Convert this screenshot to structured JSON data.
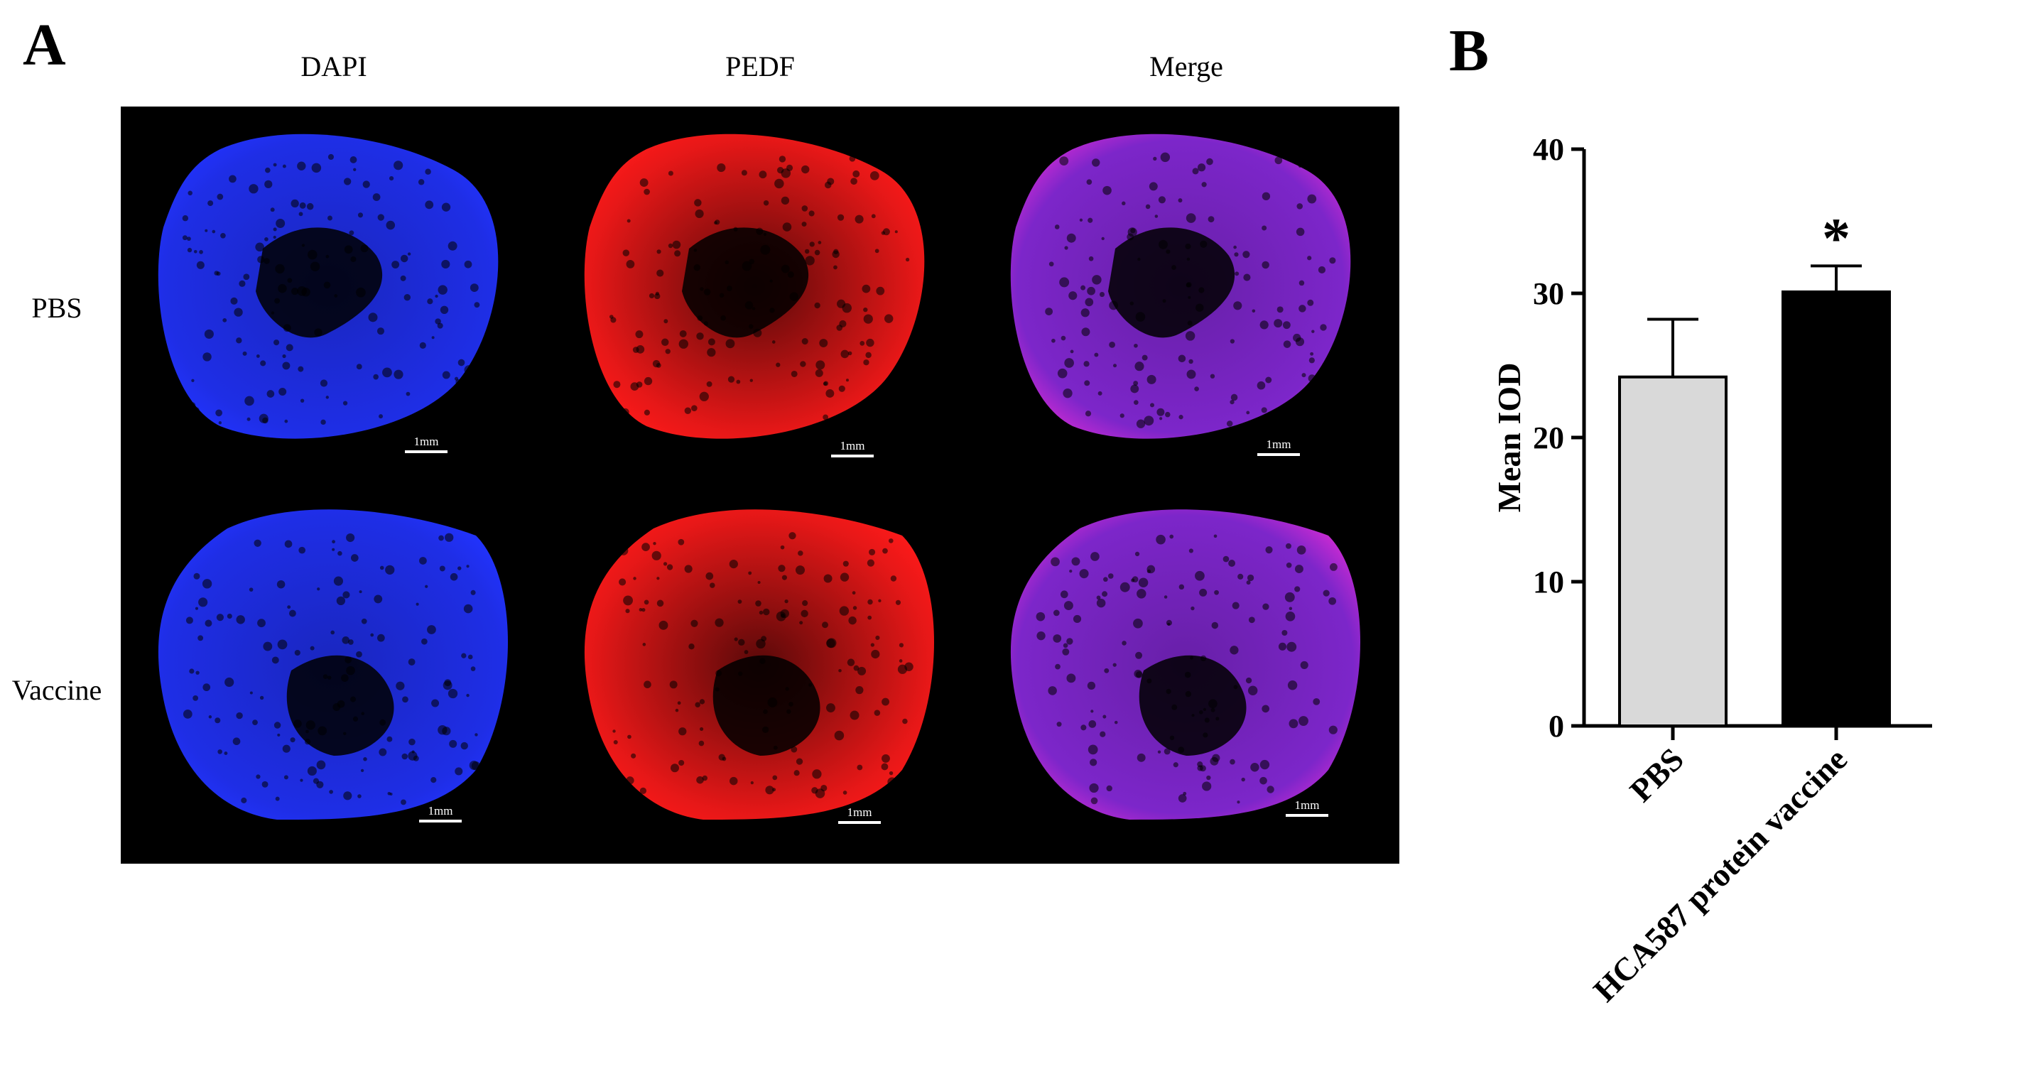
{
  "panel_a": {
    "letter": "A",
    "columns": [
      "DAPI",
      "PEDF",
      "Merge"
    ],
    "rows": [
      "PBS",
      "Vaccine"
    ],
    "scale_label": "1mm",
    "channel_colors": {
      "DAPI": "#2233ff",
      "PEDF": "#ff1a1a",
      "Merge": "#8a2ae0"
    }
  },
  "panel_b": {
    "letter": "B",
    "significance": "*"
  },
  "chart_data": {
    "type": "bar",
    "categories": [
      "PBS",
      "HCA587 protein vaccine"
    ],
    "values": [
      24.2,
      30.1
    ],
    "errors": [
      4.0,
      1.8
    ],
    "bar_colors": [
      "#d9d9d9",
      "#000000"
    ],
    "ylabel": "Mean IOD",
    "xlabel": "",
    "ylim": [
      0,
      40
    ],
    "yticks": [
      0,
      10,
      20,
      30,
      40
    ],
    "annotations": [
      {
        "category": "HCA587 protein vaccine",
        "text": "*"
      }
    ],
    "grid": false,
    "legend": "none"
  }
}
